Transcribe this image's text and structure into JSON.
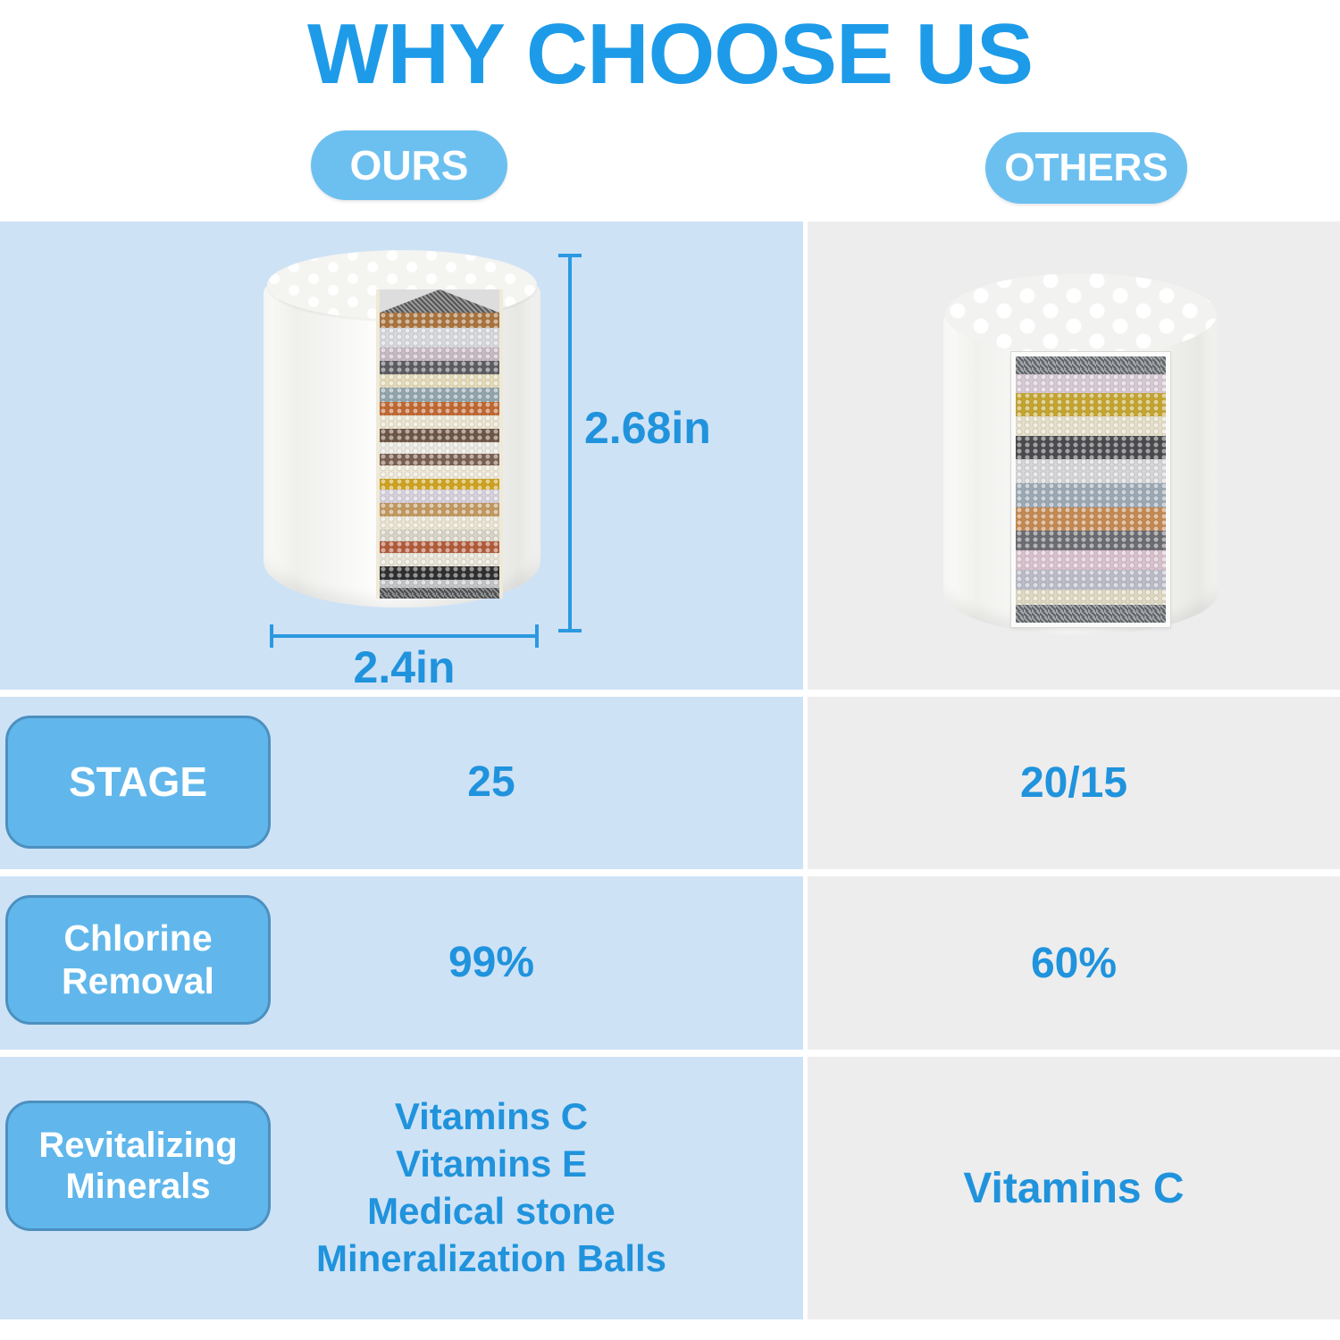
{
  "title": "WHY CHOOSE US",
  "columns": {
    "ours_label": "OURS",
    "others_label": "OTHERS"
  },
  "product_ours": {
    "height_label": "2.68in",
    "width_label": "2.4in",
    "layers": [
      {
        "color": "#aa733c",
        "h": 2
      },
      {
        "color": "#d8d9dc",
        "h": 2.6
      },
      {
        "color": "#c8b9c3",
        "h": 1.8
      },
      {
        "color": "#5d5d61",
        "h": 1.8
      },
      {
        "color": "#e5dbb9",
        "h": 1.8
      },
      {
        "color": "#91a5ad",
        "h": 1.8
      },
      {
        "color": "#c2672f",
        "h": 1.8
      },
      {
        "color": "#ece5d1",
        "h": 1.8
      },
      {
        "color": "#6e5646",
        "h": 1.8
      },
      {
        "color": "#ebe9e1",
        "h": 1.5
      },
      {
        "color": "#7c6050",
        "h": 1.5
      },
      {
        "color": "#efe9d8",
        "h": 1.8
      },
      {
        "color": "#d0a31b",
        "h": 1.4
      },
      {
        "color": "#d7d1dd",
        "h": 1.8
      },
      {
        "color": "#c2995e",
        "h": 1.8
      },
      {
        "color": "#ebe4d2",
        "h": 1.8
      },
      {
        "color": "#d8d4c6",
        "h": 1.5
      },
      {
        "color": "#b45a39",
        "h": 1.5
      },
      {
        "color": "#e8e4d7",
        "h": 1.8
      },
      {
        "color": "#2f2f2f",
        "h": 1.8
      },
      {
        "color": "#c3c5c7",
        "h": 1.1
      },
      {
        "color": "#6d6f71",
        "h": 1.4,
        "mesh": true
      }
    ]
  },
  "product_others": {
    "layers": [
      {
        "color": "#8a8f94",
        "h": 1.6,
        "mesh": true
      },
      {
        "color": "#d8cad5",
        "h": 1.7
      },
      {
        "color": "#c6a52d",
        "h": 2.1
      },
      {
        "color": "#e6dfc9",
        "h": 1.8
      },
      {
        "color": "#4b4b4f",
        "h": 2.1
      },
      {
        "color": "#d6d6d9",
        "h": 2.2
      },
      {
        "color": "#9ca9b5",
        "h": 2.2
      },
      {
        "color": "#c68951",
        "h": 2.1
      },
      {
        "color": "#6c6c73",
        "h": 1.8
      },
      {
        "color": "#d8c1cd",
        "h": 1.8
      },
      {
        "color": "#bbbbc9",
        "h": 1.8
      },
      {
        "color": "#dfd9c1",
        "h": 1.4
      },
      {
        "color": "#8a8f94",
        "h": 1.6,
        "mesh": true
      }
    ]
  },
  "rows": [
    {
      "label_lines": [
        "STAGE"
      ],
      "ours_lines": [
        "25"
      ],
      "others_lines": [
        "20/15"
      ]
    },
    {
      "label_lines": [
        "Chlorine",
        "Removal"
      ],
      "ours_lines": [
        "99%"
      ],
      "others_lines": [
        "60%"
      ]
    },
    {
      "label_lines": [
        "Revitalizing",
        "Minerals"
      ],
      "ours_lines": [
        "Vitamins C",
        "Vitamins E",
        "Medical stone",
        "Mineralization Balls"
      ],
      "others_lines": [
        "Vitamins C"
      ]
    }
  ],
  "colors": {
    "title_blue": "#1D9BE9",
    "pill_blue": "#6CC0F0",
    "value_blue": "#2093DC",
    "left_col_bg": "#CEE2F6",
    "right_col_bg": "#EDEDEE",
    "label_box_fill": "#61B7EB",
    "label_box_border": "#4C90C0",
    "measure_line": "#2B99E0"
  }
}
